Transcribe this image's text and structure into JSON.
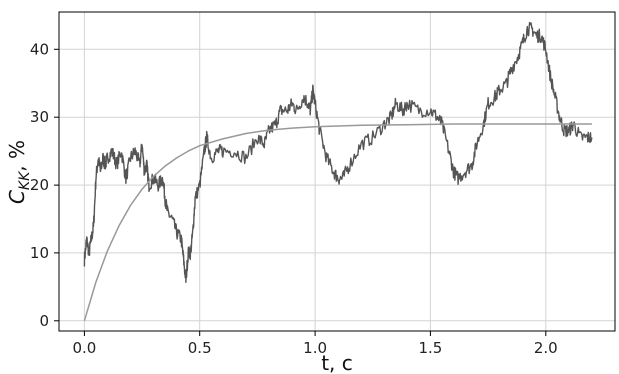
{
  "chart_data": {
    "type": "line",
    "title": "",
    "xlabel": "t, c",
    "ylabel": "C_KK, %",
    "ylabel_main": "C",
    "ylabel_sub": "KK",
    "ylabel_suffix": ", %",
    "xlim": [
      -0.11,
      2.3
    ],
    "ylim": [
      -1.5,
      45.5
    ],
    "xticks": [
      0.0,
      0.5,
      1.0,
      1.5,
      2.0
    ],
    "xtick_labels": [
      "0.0",
      "0.5",
      "1.0",
      "1.5",
      "2.0"
    ],
    "yticks": [
      0,
      10,
      20,
      30,
      40
    ],
    "ytick_labels": [
      "0",
      "10",
      "20",
      "30",
      "40"
    ],
    "grid": true,
    "colors": {
      "measured": "#555555",
      "fit": "#999999",
      "grid": "#d3d3d3",
      "frame": "#000000"
    },
    "series": [
      {
        "key": "measured",
        "x": [
          0.0,
          0.01,
          0.02,
          0.03,
          0.04,
          0.05,
          0.06,
          0.07,
          0.08,
          0.09,
          0.1,
          0.12,
          0.14,
          0.16,
          0.18,
          0.2,
          0.22,
          0.24,
          0.25,
          0.26,
          0.27,
          0.28,
          0.3,
          0.32,
          0.34,
          0.35,
          0.36,
          0.38,
          0.4,
          0.42,
          0.43,
          0.44,
          0.45,
          0.46,
          0.47,
          0.48,
          0.5,
          0.52,
          0.53,
          0.55,
          0.58,
          0.6,
          0.65,
          0.7,
          0.75,
          0.78,
          0.8,
          0.83,
          0.85,
          0.88,
          0.9,
          0.92,
          0.95,
          0.97,
          0.98,
          0.99,
          1.0,
          1.02,
          1.05,
          1.08,
          1.1,
          1.12,
          1.15,
          1.2,
          1.25,
          1.3,
          1.33,
          1.35,
          1.38,
          1.4,
          1.45,
          1.5,
          1.53,
          1.55,
          1.58,
          1.6,
          1.62,
          1.65,
          1.68,
          1.7,
          1.73,
          1.75,
          1.78,
          1.8,
          1.83,
          1.85,
          1.88,
          1.9,
          1.92,
          1.94,
          1.96,
          1.98,
          2.0,
          2.02,
          2.04,
          2.06,
          2.08,
          2.1,
          2.12,
          2.15,
          2.18,
          2.2
        ],
        "y": [
          9,
          12,
          10,
          12,
          14,
          21,
          24,
          22,
          24,
          23,
          24,
          25,
          23,
          25,
          21,
          24,
          25,
          23,
          26,
          22,
          23,
          20,
          21,
          20,
          21,
          18,
          16,
          15,
          13,
          12,
          9,
          6,
          10,
          10,
          13,
          18,
          20,
          25,
          27,
          24,
          25,
          25,
          25,
          24,
          27,
          26,
          28,
          29,
          31,
          31,
          32,
          31,
          33,
          32,
          31,
          34,
          32,
          28,
          24,
          22,
          21,
          21,
          23,
          26,
          27,
          29,
          30,
          32,
          31,
          32,
          31,
          31,
          30,
          29,
          25,
          22,
          21,
          22,
          23,
          26,
          29,
          32,
          33,
          34,
          35,
          37,
          39,
          41,
          43,
          43,
          42,
          42,
          40,
          36,
          33,
          30,
          28,
          28,
          29,
          27,
          27,
          27
        ]
      },
      {
        "key": "fit",
        "model": "29*(1-exp(-t/0.23))",
        "x": [
          0.0,
          0.05,
          0.1,
          0.15,
          0.2,
          0.25,
          0.3,
          0.35,
          0.4,
          0.45,
          0.5,
          0.6,
          0.7,
          0.8,
          0.9,
          1.0,
          1.1,
          1.2,
          1.4,
          1.6,
          1.8,
          2.0,
          2.2
        ],
        "y": [
          0.0,
          5.7,
          10.3,
          14.0,
          17.0,
          19.4,
          21.3,
          22.8,
          24.0,
          25.0,
          25.8,
          26.8,
          27.6,
          28.1,
          28.4,
          28.6,
          28.7,
          28.8,
          28.9,
          29.0,
          29.0,
          29.0,
          29.0
        ]
      }
    ]
  }
}
